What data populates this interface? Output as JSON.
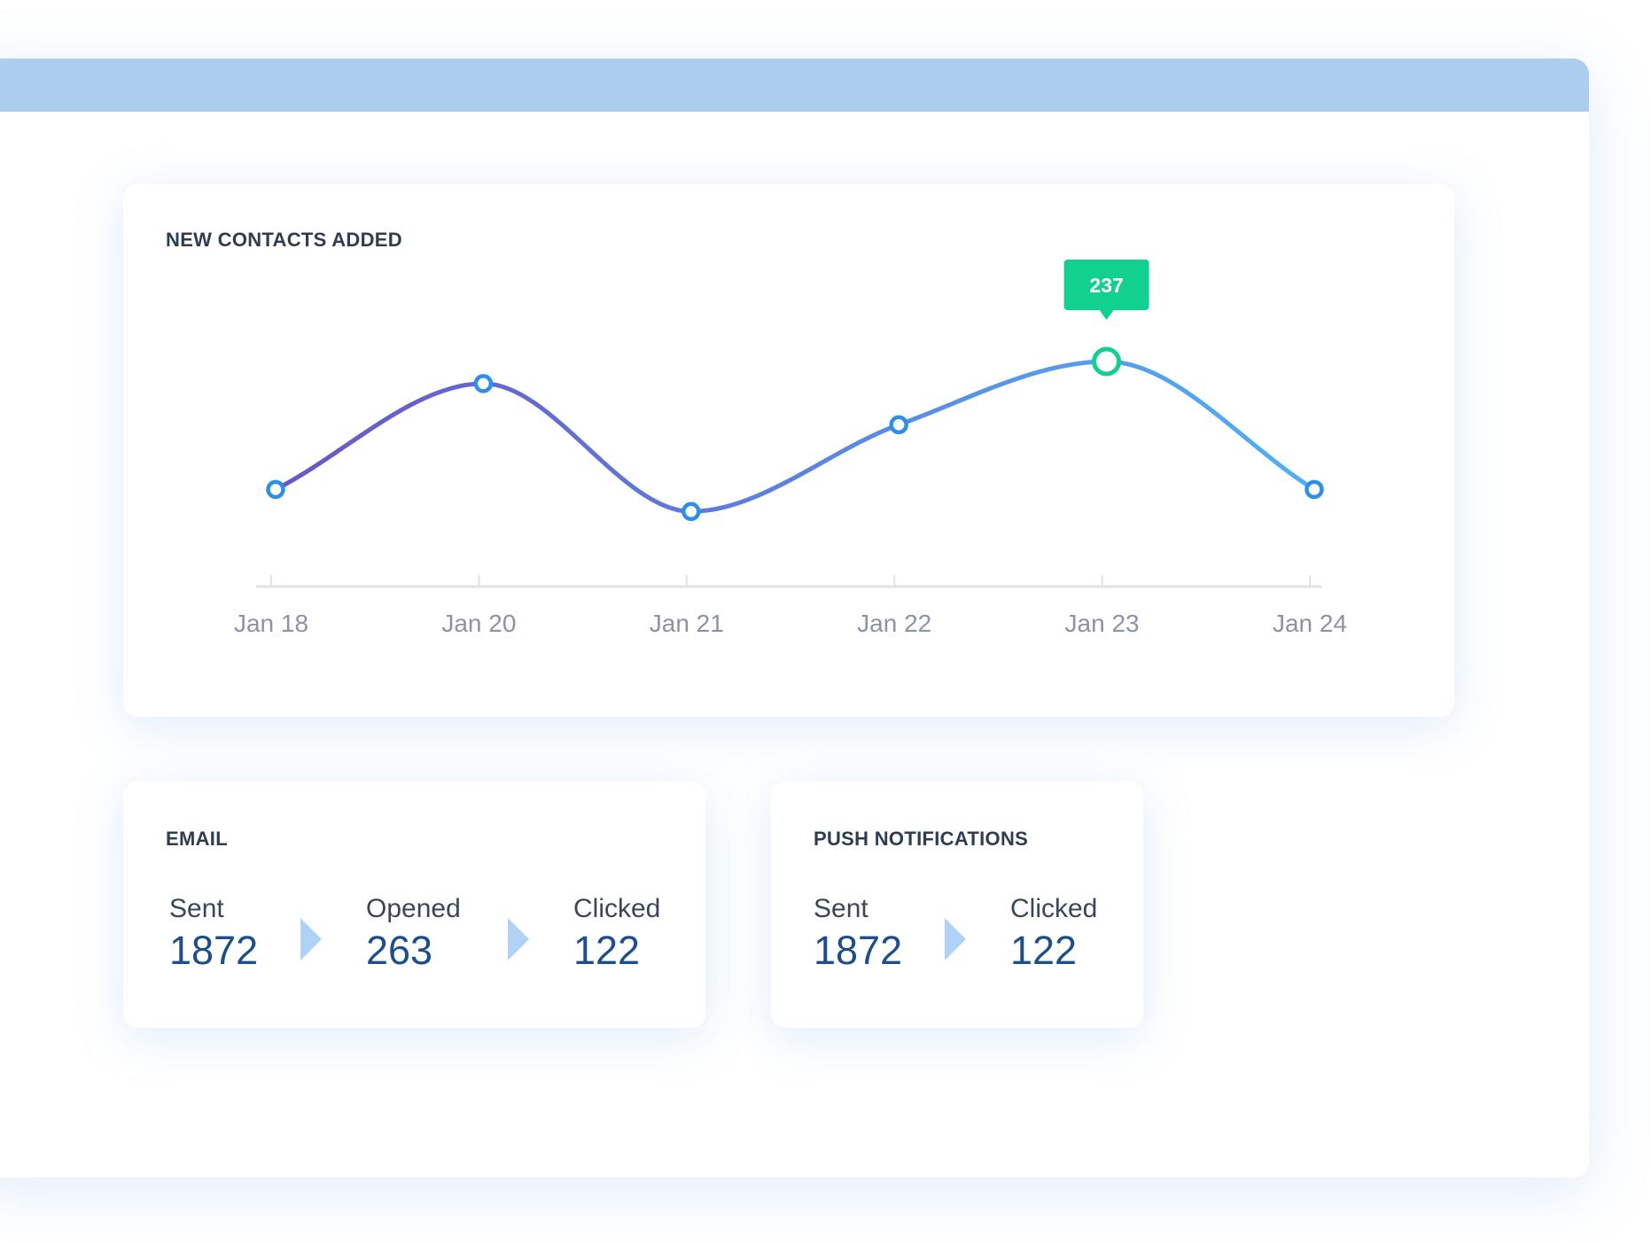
{
  "contacts_card": {
    "title": "NEW CONTACTS ADDED",
    "tooltip": "237"
  },
  "chart_data": {
    "type": "line",
    "title": "NEW CONTACTS ADDED",
    "categories": [
      "Jan 18",
      "Jan 20",
      "Jan 21",
      "Jan 22",
      "Jan 23",
      "Jan 24"
    ],
    "values": [
      150,
      222,
      135,
      194,
      237,
      150
    ],
    "highlight_index": 4,
    "highlight_label": "237",
    "grid": false,
    "line_gradient": [
      "#6a55c8",
      "#4fb0f5"
    ],
    "point_color": "#2f8fe8",
    "highlight_color": "#12d18e"
  },
  "email_card": {
    "title": "EMAIL",
    "stats": [
      {
        "label": "Sent",
        "value": "1872"
      },
      {
        "label": "Opened",
        "value": "263"
      },
      {
        "label": "Clicked",
        "value": "122"
      }
    ]
  },
  "push_card": {
    "title": "PUSH NOTIFICATIONS",
    "stats": [
      {
        "label": "Sent",
        "value": "1872"
      },
      {
        "label": "Clicked",
        "value": "122"
      }
    ]
  },
  "colors": {
    "window_bar": "#abcdee",
    "title_text": "#2f3d52",
    "stat_value": "#1c4e8c",
    "arrow": "#afd2f6"
  }
}
